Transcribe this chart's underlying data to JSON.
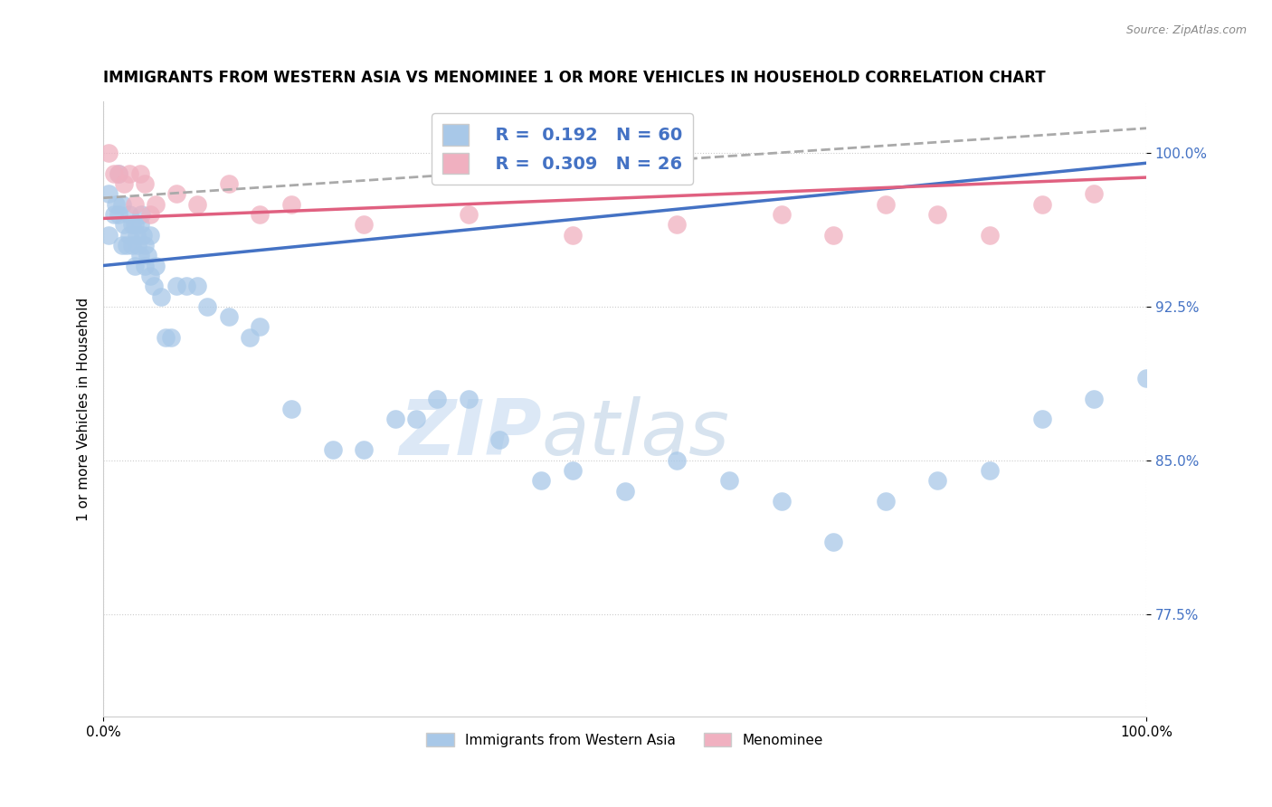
{
  "title": "IMMIGRANTS FROM WESTERN ASIA VS MENOMINEE 1 OR MORE VEHICLES IN HOUSEHOLD CORRELATION CHART",
  "source": "Source: ZipAtlas.com",
  "ylabel": "1 or more Vehicles in Household",
  "xlim": [
    0.0,
    1.0
  ],
  "ylim": [
    0.725,
    1.025
  ],
  "yticks": [
    0.775,
    0.85,
    0.925,
    1.0
  ],
  "ytick_labels": [
    "77.5%",
    "85.0%",
    "92.5%",
    "100.0%"
  ],
  "xtick_labels": [
    "0.0%",
    "100.0%"
  ],
  "xticks": [
    0.0,
    1.0
  ],
  "blue_color": "#a8c8e8",
  "pink_color": "#f0b0c0",
  "blue_line_color": "#4472c4",
  "pink_line_color": "#e06080",
  "title_fontsize": 12,
  "axis_label_fontsize": 11,
  "tick_fontsize": 11,
  "watermark_zip": "ZIP",
  "watermark_atlas": "atlas",
  "blue_scatter_x": [
    0.005,
    0.005,
    0.01,
    0.012,
    0.015,
    0.015,
    0.018,
    0.018,
    0.02,
    0.022,
    0.025,
    0.025,
    0.028,
    0.028,
    0.03,
    0.03,
    0.032,
    0.033,
    0.035,
    0.035,
    0.036,
    0.038,
    0.04,
    0.04,
    0.042,
    0.045,
    0.045,
    0.048,
    0.05,
    0.055,
    0.06,
    0.065,
    0.07,
    0.08,
    0.09,
    0.1,
    0.12,
    0.14,
    0.15,
    0.18,
    0.22,
    0.25,
    0.28,
    0.3,
    0.32,
    0.35,
    0.38,
    0.42,
    0.45,
    0.5,
    0.55,
    0.6,
    0.65,
    0.7,
    0.75,
    0.8,
    0.85,
    0.9,
    0.95,
    1.0
  ],
  "blue_scatter_y": [
    0.98,
    0.96,
    0.97,
    0.975,
    0.99,
    0.97,
    0.955,
    0.975,
    0.965,
    0.955,
    0.97,
    0.96,
    0.955,
    0.965,
    0.965,
    0.945,
    0.96,
    0.955,
    0.965,
    0.95,
    0.97,
    0.96,
    0.945,
    0.955,
    0.95,
    0.94,
    0.96,
    0.935,
    0.945,
    0.93,
    0.91,
    0.91,
    0.935,
    0.935,
    0.935,
    0.925,
    0.92,
    0.91,
    0.915,
    0.875,
    0.855,
    0.855,
    0.87,
    0.87,
    0.88,
    0.88,
    0.86,
    0.84,
    0.845,
    0.835,
    0.85,
    0.84,
    0.83,
    0.81,
    0.83,
    0.84,
    0.845,
    0.87,
    0.88,
    0.89
  ],
  "pink_scatter_x": [
    0.005,
    0.01,
    0.015,
    0.02,
    0.025,
    0.03,
    0.035,
    0.04,
    0.045,
    0.05,
    0.07,
    0.09,
    0.12,
    0.15,
    0.18,
    0.25,
    0.35,
    0.45,
    0.55,
    0.65,
    0.7,
    0.75,
    0.8,
    0.85,
    0.9,
    0.95
  ],
  "pink_scatter_y": [
    1.0,
    0.99,
    0.99,
    0.985,
    0.99,
    0.975,
    0.99,
    0.985,
    0.97,
    0.975,
    0.98,
    0.975,
    0.985,
    0.97,
    0.975,
    0.965,
    0.97,
    0.96,
    0.965,
    0.97,
    0.96,
    0.975,
    0.97,
    0.96,
    0.975,
    0.98
  ],
  "blue_trend_y_start": 0.945,
  "blue_trend_y_end": 0.995,
  "pink_trend_y_start": 0.968,
  "pink_trend_y_end": 0.988,
  "dashed_trend_y_start": 0.978,
  "dashed_trend_y_end": 1.012
}
